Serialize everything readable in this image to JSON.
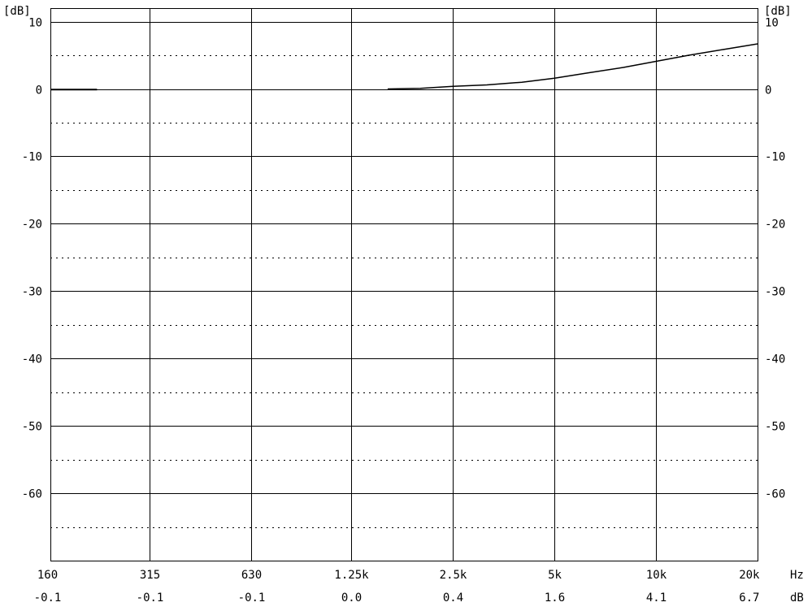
{
  "chart_data": {
    "type": "line",
    "y_unit_left": "[dB]",
    "y_unit_right": "[dB]",
    "x_unit": "Hz",
    "value_unit": "dB",
    "ylim": [
      -70,
      12
    ],
    "y_major_ticks": [
      10,
      0,
      -10,
      -20,
      -30,
      -40,
      -50,
      -60
    ],
    "y_minor_dotted": [
      5,
      -5,
      -15,
      -25,
      -35,
      -45,
      -55,
      -65
    ],
    "x_scale": "log",
    "x_ticks": [
      {
        "label": "160",
        "hz": 160,
        "value": "-0.1"
      },
      {
        "label": "315",
        "hz": 315,
        "value": "-0.1"
      },
      {
        "label": "630",
        "hz": 630,
        "value": "-0.1"
      },
      {
        "label": "1.25k",
        "hz": 1250,
        "value": "0.0"
      },
      {
        "label": "2.5k",
        "hz": 2500,
        "value": "0.4"
      },
      {
        "label": "5k",
        "hz": 5000,
        "value": "1.6"
      },
      {
        "label": "10k",
        "hz": 10000,
        "value": "4.1"
      },
      {
        "label": "20k",
        "hz": 20000,
        "value": "6.7"
      }
    ],
    "grid": true,
    "series": [
      {
        "color": "#000000",
        "segments": [
          [
            [
              160,
              -0.1
            ],
            [
              220,
              -0.1
            ]
          ],
          [
            [
              1600,
              0.0
            ],
            [
              2000,
              0.1
            ],
            [
              2500,
              0.4
            ],
            [
              3150,
              0.6
            ],
            [
              4000,
              1.0
            ],
            [
              5000,
              1.6
            ],
            [
              6300,
              2.4
            ],
            [
              8000,
              3.2
            ],
            [
              10000,
              4.1
            ],
            [
              12500,
              5.0
            ],
            [
              16000,
              5.9
            ],
            [
              20000,
              6.7
            ]
          ]
        ]
      }
    ]
  }
}
